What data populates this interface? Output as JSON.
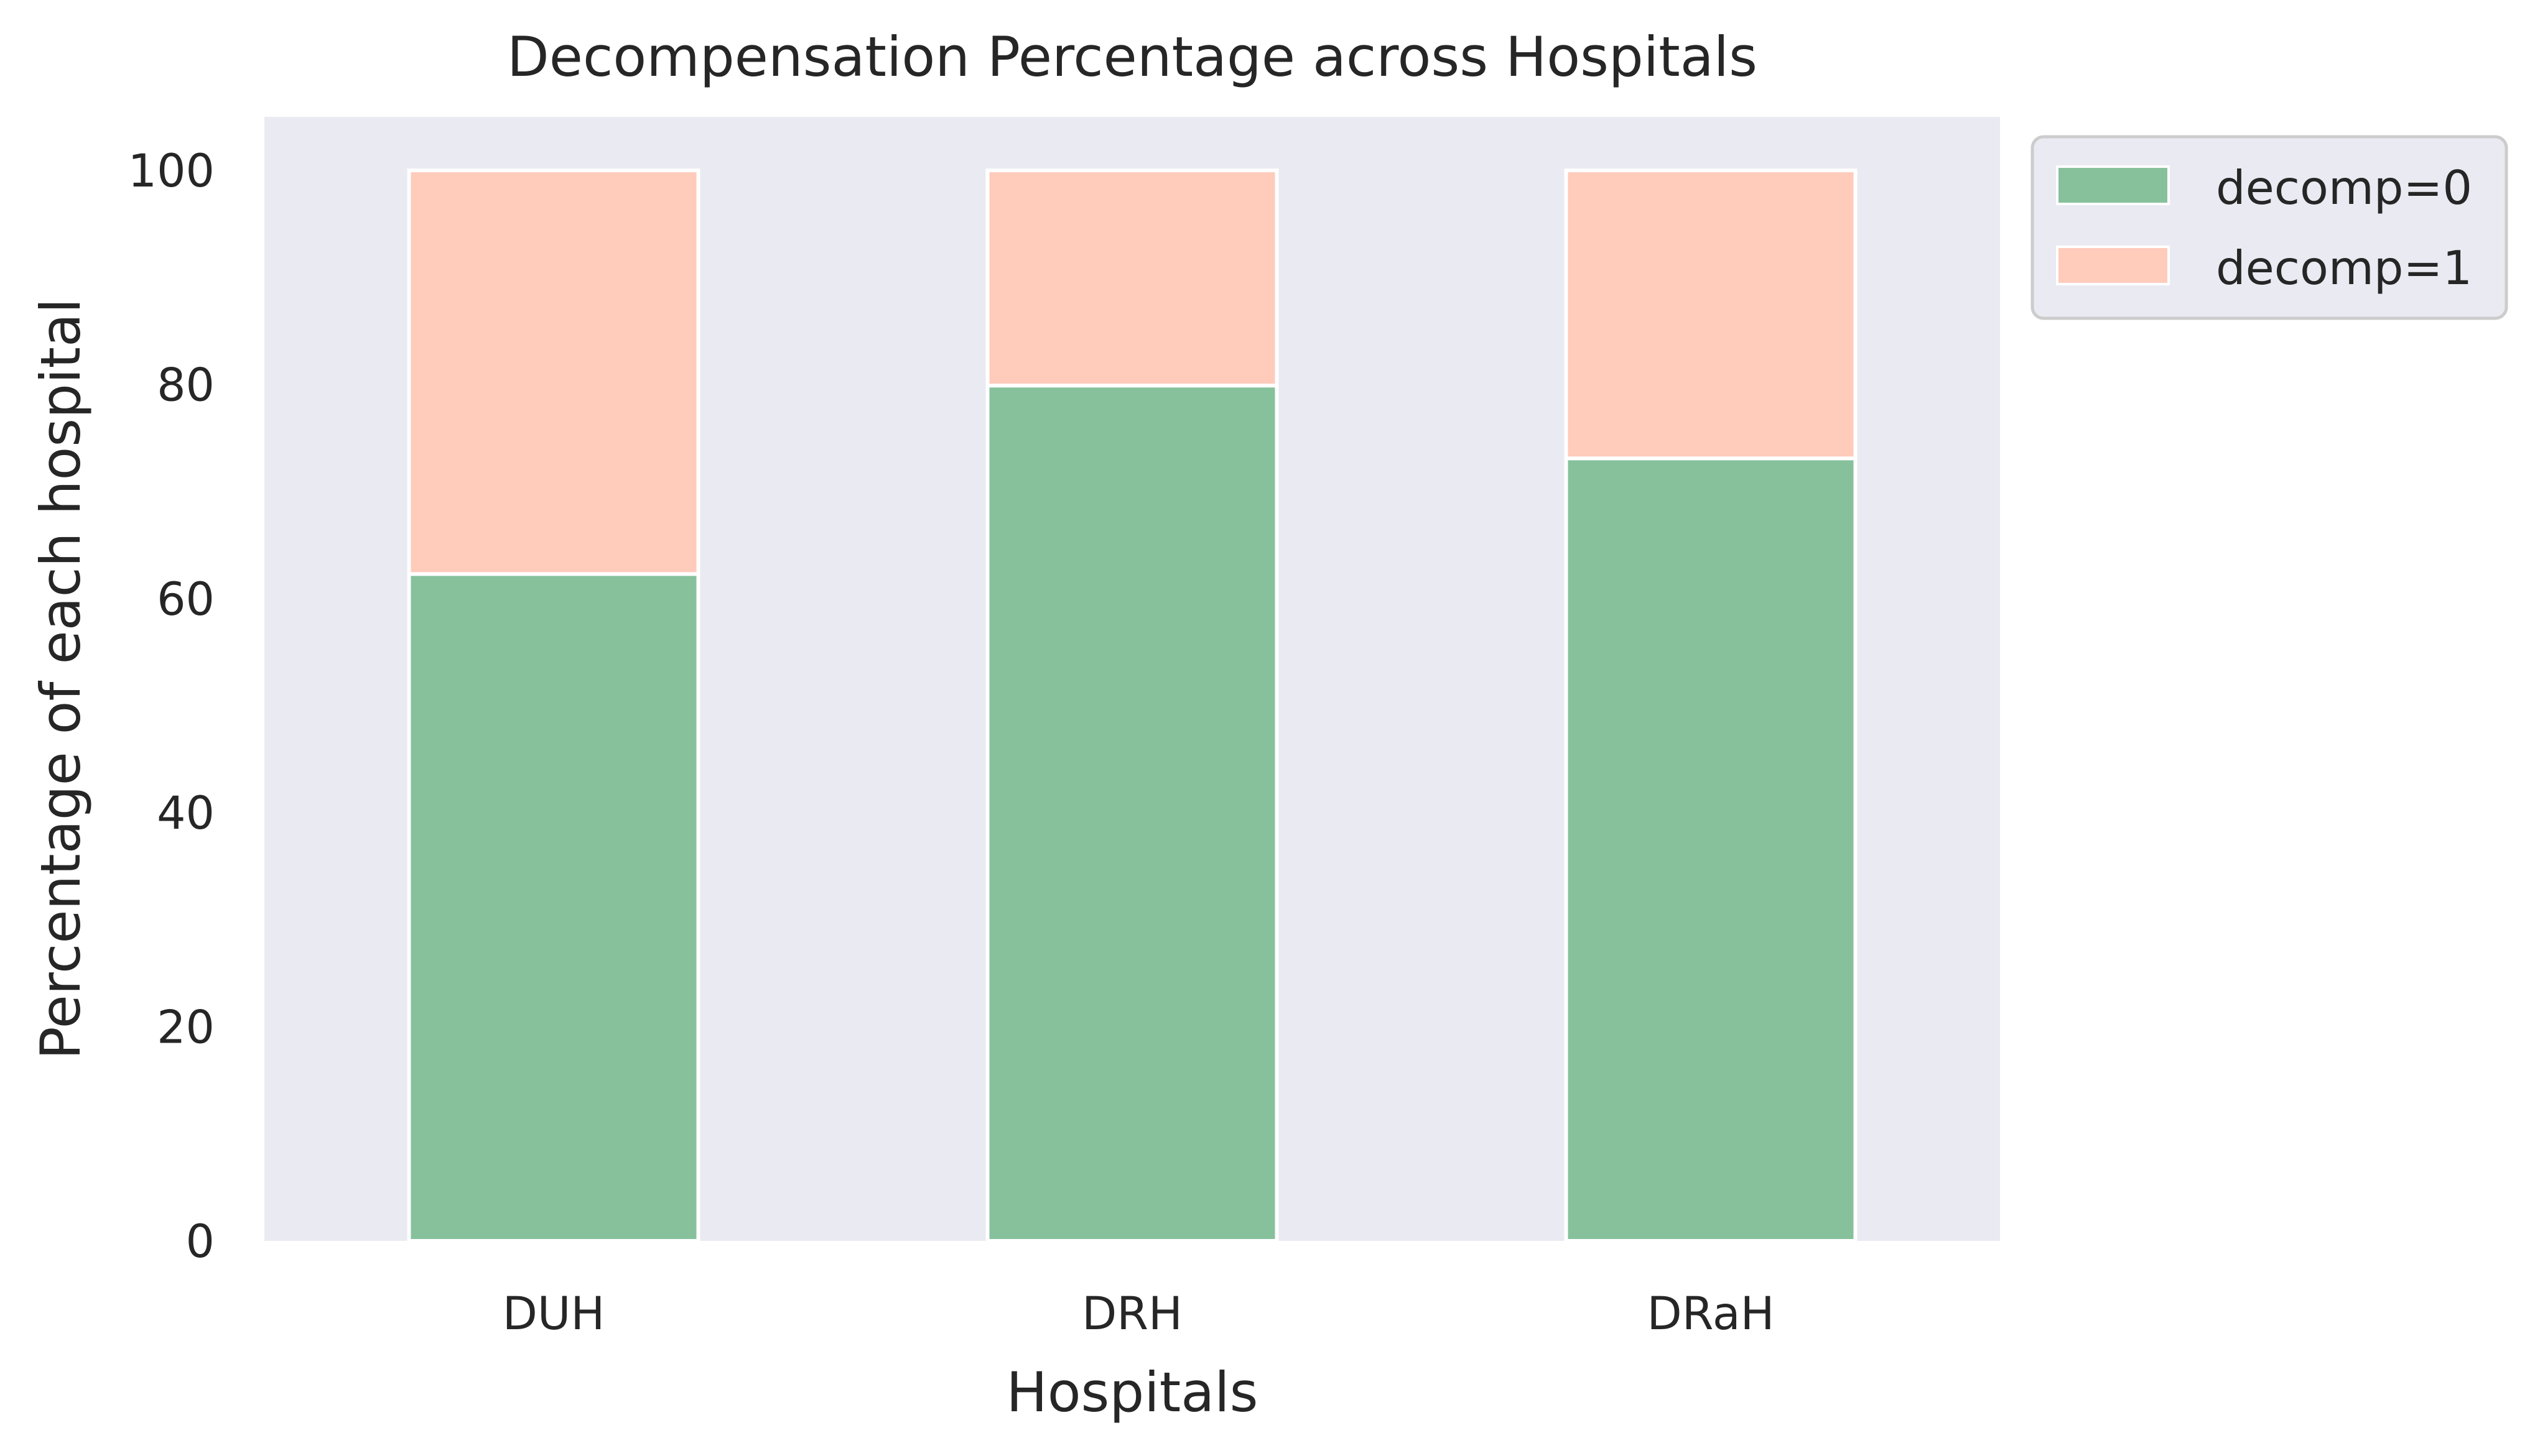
{
  "chart_data": {
    "type": "bar",
    "stacked": true,
    "title": "Decompensation Percentage across Hospitals",
    "xlabel": "Hospitals",
    "ylabel": "Percentage of each hospital",
    "categories": [
      "DUH",
      "DRH",
      "DRaH"
    ],
    "series": [
      {
        "name": "decomp=0",
        "values": [
          62.3,
          79.9,
          73.1
        ],
        "color": "#86c19c"
      },
      {
        "name": "decomp=1",
        "values": [
          37.7,
          20.1,
          26.9
        ],
        "color": "#ffcbbb"
      }
    ],
    "ylim": [
      0,
      105
    ],
    "yticks": [
      0,
      20,
      40,
      60,
      80,
      100
    ],
    "grid": false,
    "legend_position": "outside-top-right",
    "plot_background": "#eaeaf2",
    "bar_edge_color": "#ffffff"
  }
}
